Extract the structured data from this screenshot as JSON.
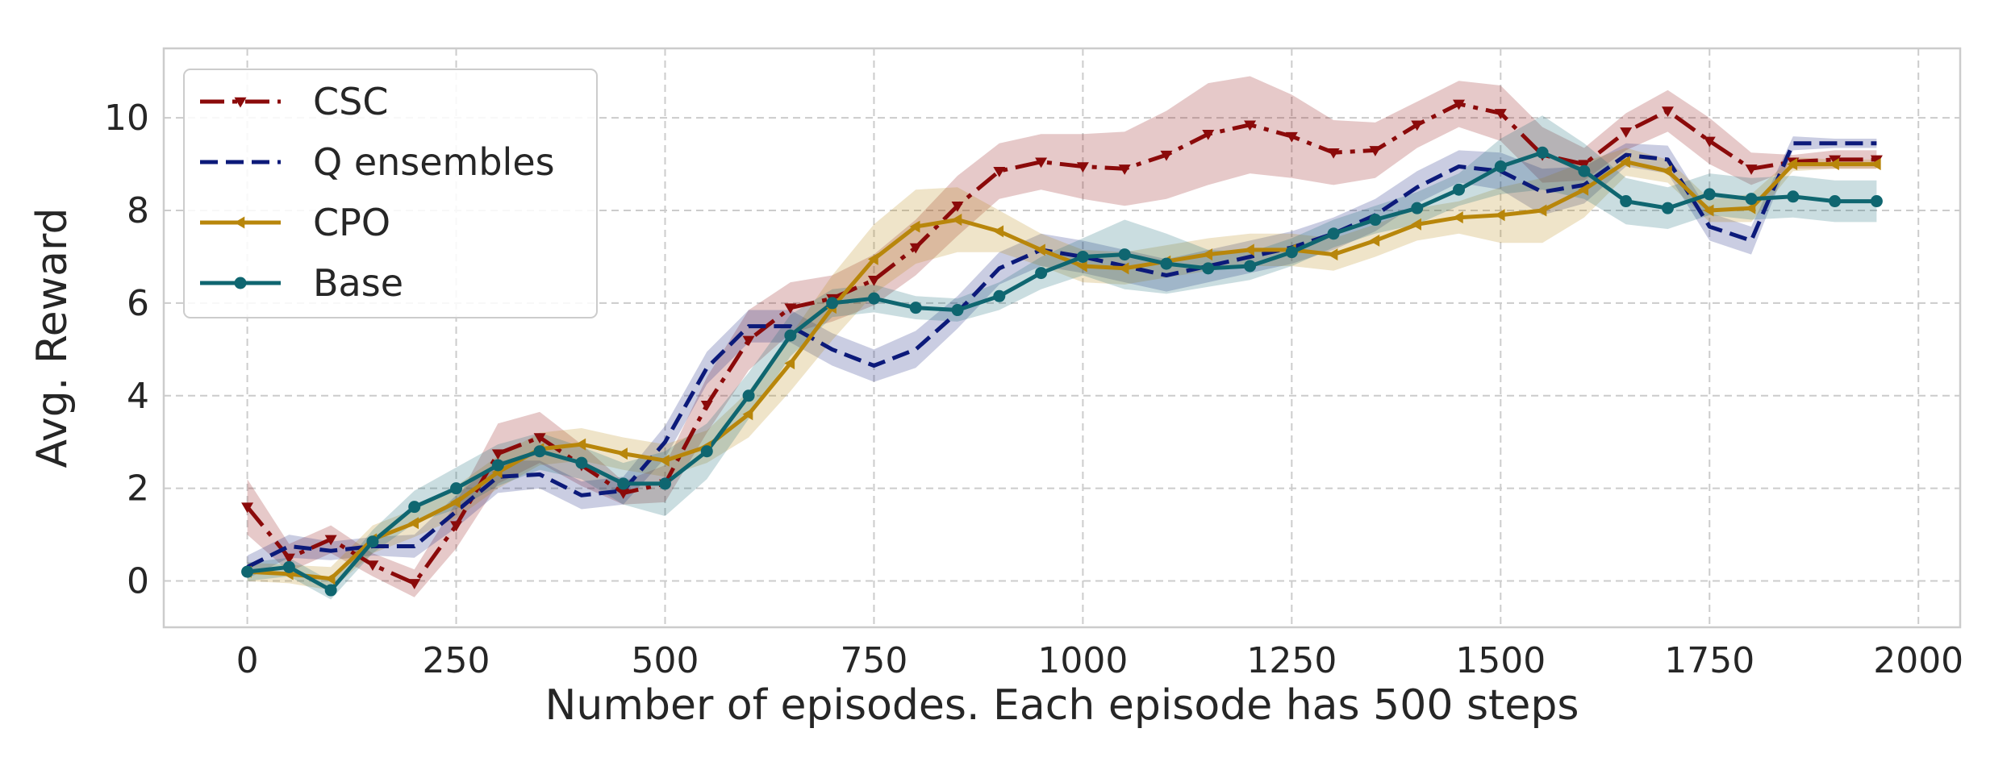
{
  "chart_data": {
    "type": "line",
    "title": "",
    "xlabel": "Number of episodes. Each episode has 500 steps",
    "ylabel": "Avg. Reward",
    "xlim": [
      -100,
      2050
    ],
    "ylim": [
      -1,
      11.5
    ],
    "xticks": [
      0,
      250,
      500,
      750,
      1000,
      1250,
      1500,
      1750,
      2000
    ],
    "yticks": [
      0,
      2,
      4,
      6,
      8,
      10
    ],
    "xtick_labels": [
      "0",
      "250",
      "500",
      "750",
      "1000",
      "1250",
      "1500",
      "1750",
      "2000"
    ],
    "ytick_labels": [
      "0",
      "2",
      "4",
      "6",
      "8",
      "10"
    ],
    "grid": true,
    "legend_position": "top-left",
    "x": [
      0,
      50,
      100,
      150,
      200,
      250,
      300,
      350,
      400,
      450,
      500,
      550,
      600,
      650,
      700,
      750,
      800,
      850,
      900,
      950,
      1000,
      1050,
      1100,
      1150,
      1200,
      1250,
      1300,
      1350,
      1400,
      1450,
      1500,
      1550,
      1600,
      1650,
      1700,
      1750,
      1800,
      1850,
      1900,
      1950
    ],
    "series": [
      {
        "name": "CSC",
        "color": "#8b0a0a",
        "dash": "dashdot",
        "marker": "triangle-down",
        "values": [
          1.6,
          0.5,
          0.9,
          0.35,
          -0.05,
          1.2,
          2.75,
          3.1,
          2.5,
          1.9,
          2.1,
          3.8,
          5.2,
          5.9,
          6.1,
          6.5,
          7.2,
          8.1,
          8.85,
          9.05,
          8.95,
          8.9,
          9.2,
          9.65,
          9.85,
          9.6,
          9.25,
          9.3,
          9.85,
          10.3,
          10.1,
          9.2,
          9.0,
          9.7,
          10.15,
          9.5,
          8.9,
          9.05,
          9.1,
          9.1
        ],
        "band": [
          0.6,
          0.3,
          0.3,
          0.25,
          0.3,
          0.5,
          0.65,
          0.55,
          0.45,
          0.25,
          0.4,
          0.6,
          0.65,
          0.55,
          0.5,
          0.55,
          0.6,
          0.65,
          0.6,
          0.6,
          0.7,
          0.8,
          0.95,
          1.1,
          1.05,
          0.9,
          0.7,
          0.6,
          0.5,
          0.5,
          0.6,
          0.6,
          0.35,
          0.4,
          0.45,
          0.5,
          0.35,
          0.15,
          0.2,
          0.2
        ]
      },
      {
        "name": "Q ensembles",
        "color": "#0c1a7a",
        "dash": "dashed",
        "marker": "none",
        "values": [
          0.3,
          0.75,
          0.65,
          0.75,
          0.75,
          1.5,
          2.25,
          2.3,
          1.85,
          1.95,
          3.0,
          4.6,
          5.5,
          5.5,
          5.0,
          4.65,
          5.0,
          5.8,
          6.75,
          7.15,
          7.0,
          6.8,
          6.6,
          6.8,
          7.0,
          7.2,
          7.5,
          7.9,
          8.5,
          8.95,
          8.85,
          8.4,
          8.55,
          9.2,
          9.1,
          7.65,
          7.35,
          9.45,
          9.45,
          9.45
        ],
        "band": [
          0.25,
          0.25,
          0.2,
          0.2,
          0.25,
          0.35,
          0.35,
          0.3,
          0.3,
          0.3,
          0.35,
          0.35,
          0.35,
          0.35,
          0.35,
          0.35,
          0.4,
          0.35,
          0.35,
          0.35,
          0.35,
          0.35,
          0.35,
          0.35,
          0.35,
          0.35,
          0.35,
          0.35,
          0.35,
          0.35,
          0.4,
          0.5,
          0.4,
          0.25,
          0.3,
          0.3,
          0.3,
          0.15,
          0.1,
          0.1
        ]
      },
      {
        "name": "CPO",
        "color": "#b8860b",
        "dash": "solid",
        "marker": "triangle-left",
        "values": [
          0.2,
          0.15,
          0.05,
          0.9,
          1.25,
          1.7,
          2.35,
          2.85,
          2.95,
          2.75,
          2.6,
          2.9,
          3.6,
          4.7,
          5.9,
          6.95,
          7.65,
          7.8,
          7.55,
          7.15,
          6.8,
          6.75,
          6.9,
          7.05,
          7.15,
          7.15,
          7.05,
          7.35,
          7.7,
          7.85,
          7.9,
          8.0,
          8.45,
          9.05,
          8.85,
          8.0,
          8.05,
          9.0,
          9.0,
          9.0
        ],
        "band": [
          0.2,
          0.2,
          0.25,
          0.3,
          0.3,
          0.35,
          0.35,
          0.35,
          0.35,
          0.35,
          0.35,
          0.35,
          0.5,
          0.6,
          0.7,
          0.75,
          0.8,
          0.7,
          0.45,
          0.35,
          0.35,
          0.35,
          0.35,
          0.35,
          0.35,
          0.35,
          0.35,
          0.35,
          0.35,
          0.35,
          0.6,
          0.7,
          0.6,
          0.3,
          0.25,
          0.25,
          0.3,
          0.15,
          0.1,
          0.1
        ]
      },
      {
        "name": "Base",
        "color": "#0f6670",
        "dash": "solid",
        "marker": "circle",
        "values": [
          0.2,
          0.3,
          -0.2,
          0.85,
          1.6,
          2.0,
          2.5,
          2.8,
          2.55,
          2.1,
          2.1,
          2.8,
          4.0,
          5.3,
          6.0,
          6.1,
          5.9,
          5.85,
          6.15,
          6.65,
          7.0,
          7.05,
          6.85,
          6.75,
          6.8,
          7.1,
          7.5,
          7.8,
          8.05,
          8.45,
          8.95,
          9.25,
          8.85,
          8.2,
          8.05,
          8.35,
          8.25,
          8.3,
          8.2,
          8.2
        ],
        "band": [
          0.2,
          0.2,
          0.2,
          0.25,
          0.35,
          0.45,
          0.45,
          0.4,
          0.35,
          0.45,
          0.7,
          0.6,
          0.5,
          0.45,
          0.3,
          0.3,
          0.25,
          0.25,
          0.3,
          0.35,
          0.4,
          0.75,
          0.65,
          0.4,
          0.3,
          0.3,
          0.3,
          0.3,
          0.35,
          0.35,
          0.6,
          0.8,
          0.6,
          0.5,
          0.45,
          0.45,
          0.45,
          0.45,
          0.45,
          0.45
        ]
      }
    ]
  }
}
